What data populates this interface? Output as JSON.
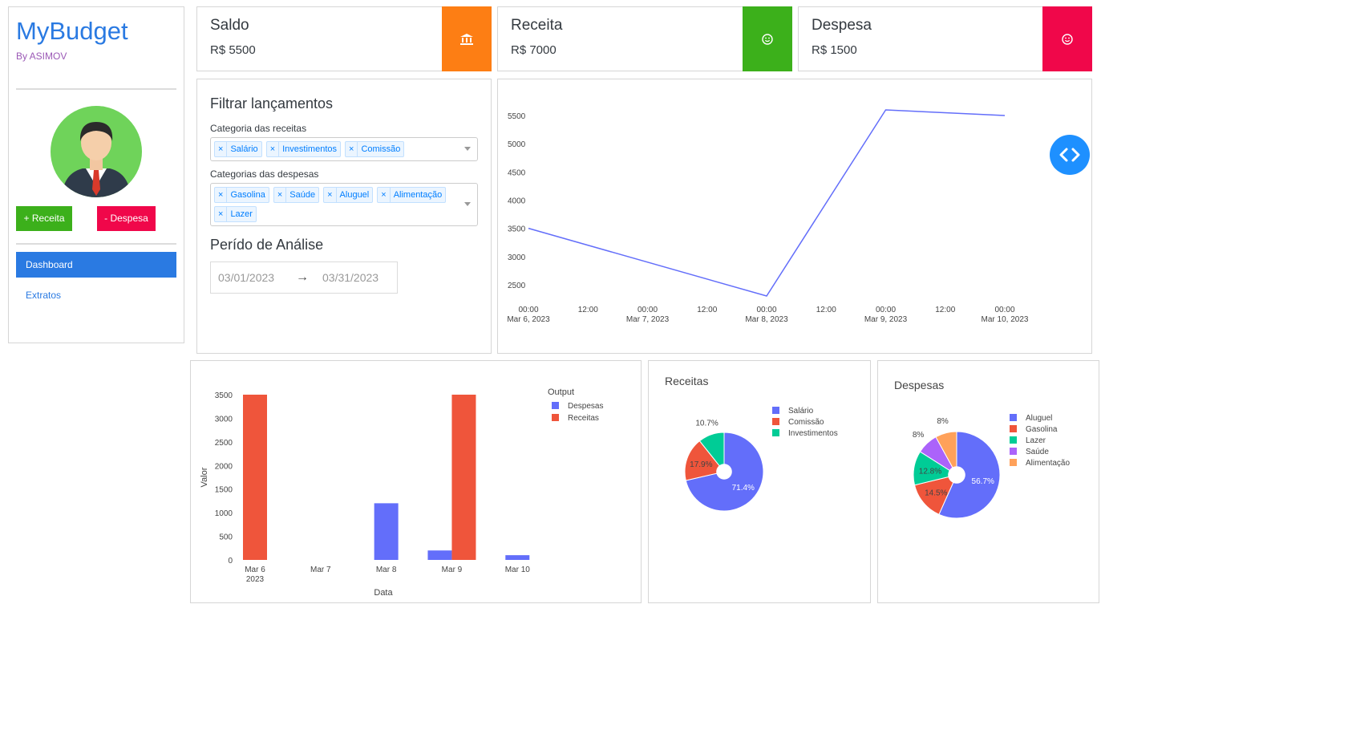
{
  "sidebar": {
    "brand": "MyBudget",
    "byline": "By ASIMOV",
    "buttons": {
      "receita": "+ Receita",
      "despesa": "- Despesa"
    },
    "nav": {
      "dashboard": "Dashboard",
      "extratos": "Extratos"
    }
  },
  "cards": {
    "saldo": {
      "label": "Saldo",
      "value": "R$ 5500",
      "color": "#fd7e14",
      "icon": "bank-icon"
    },
    "receita": {
      "label": "Receita",
      "value": "R$ 7000",
      "color": "#3cb01b",
      "icon": "smile-icon"
    },
    "despesa": {
      "label": "Despesa",
      "value": "R$ 1500",
      "color": "#f0074a",
      "icon": "smile-icon"
    }
  },
  "filter": {
    "title": "Filtrar lançamentos",
    "receitas_label": "Categoria das receitas",
    "receitas_selected": [
      "Salário",
      "Investimentos",
      "Comissão"
    ],
    "despesas_label": "Categorias das despesas",
    "despesas_selected": [
      "Gasolina",
      "Saúde",
      "Aluguel",
      "Alimentação",
      "Lazer"
    ],
    "periodo_title": "Perído de Análise",
    "start_date": "03/01/2023",
    "end_date": "03/31/2023",
    "chip_remove": "×"
  },
  "colors": {
    "accent": "#2a7ae2",
    "plot_blue": "#636efa",
    "plot_red": "#ef553b",
    "plot_green": "#00cc96",
    "plot_purple": "#ab63fa",
    "plot_orange": "#ffa15a"
  },
  "chart_data": [
    {
      "type": "line",
      "x": [
        "2023-03-06 00:00",
        "2023-03-08 00:00",
        "2023-03-09 00:00",
        "2023-03-10 00:00"
      ],
      "y": [
        3500,
        2300,
        5600,
        5500
      ],
      "x_tick_labels": [
        [
          "00:00",
          "Mar 6, 2023"
        ],
        [
          "12:00",
          ""
        ],
        [
          "00:00",
          "Mar 7, 2023"
        ],
        [
          "12:00",
          ""
        ],
        [
          "00:00",
          "Mar 8, 2023"
        ],
        [
          "12:00",
          ""
        ],
        [
          "00:00",
          "Mar 9, 2023"
        ],
        [
          "12:00",
          ""
        ],
        [
          "00:00",
          "Mar 10, 2023"
        ]
      ],
      "y_ticks": [
        2500,
        3000,
        3500,
        4000,
        4500,
        5000,
        5500
      ],
      "ylim": [
        2300,
        5600
      ],
      "color": "#636efa",
      "grid": false
    },
    {
      "type": "bar",
      "barmode": "group",
      "xlabel": "Data",
      "ylabel": "Valor",
      "legend_title": "Output",
      "legend_position": "top-right",
      "categories": [
        "Mar 6",
        "Mar 7",
        "Mar 8",
        "Mar 9",
        "Mar 10"
      ],
      "category_sublabels": [
        "2023",
        "",
        "",
        "",
        ""
      ],
      "y_ticks": [
        0,
        500,
        1000,
        1500,
        2000,
        2500,
        3000,
        3500
      ],
      "ylim": [
        0,
        3500
      ],
      "series": [
        {
          "name": "Despesas",
          "color": "#636efa",
          "values": [
            0,
            0,
            1200,
            200,
            100
          ]
        },
        {
          "name": "Receitas",
          "color": "#ef553b",
          "values": [
            3500,
            0,
            0,
            3500,
            0
          ]
        }
      ]
    },
    {
      "type": "pie",
      "title": "Receitas",
      "hole": true,
      "labels": [
        "Salário",
        "Comissão",
        "Investimentos"
      ],
      "values": [
        71.4,
        17.9,
        10.7
      ],
      "percent_labels": [
        "71.4%",
        "17.9%",
        "10.7%"
      ],
      "colors": [
        "#636efa",
        "#ef553b",
        "#00cc96"
      ]
    },
    {
      "type": "pie",
      "title": "Despesas",
      "hole": true,
      "labels": [
        "Aluguel",
        "Gasolina",
        "Lazer",
        "Saúde",
        "Alimentação"
      ],
      "values": [
        56.7,
        14.5,
        12.8,
        8,
        8
      ],
      "percent_labels": [
        "56.7%",
        "14.5%",
        "12.8%",
        "8%",
        "8%"
      ],
      "colors": [
        "#636efa",
        "#ef553b",
        "#00cc96",
        "#ab63fa",
        "#ffa15a"
      ]
    }
  ]
}
